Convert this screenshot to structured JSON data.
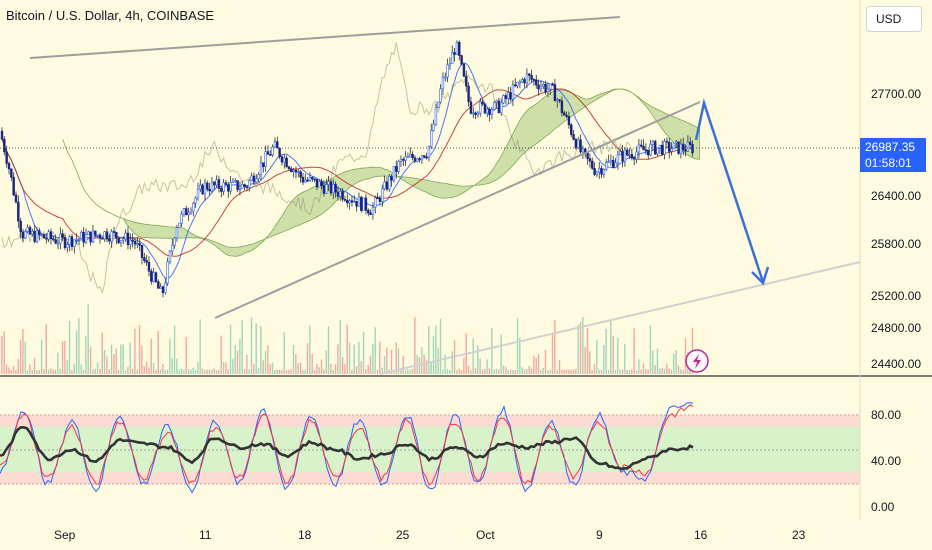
{
  "header": {
    "title": "Bitcoin / U.S. Dollar, 4h, COINBASE",
    "currency_button": "USD"
  },
  "price_label": {
    "price": "26987.35",
    "countdown": "01:58:01"
  },
  "colors": {
    "background": "#fffbe0",
    "candle_up": "#2962ff",
    "candle_down": "#b71c1c",
    "price_tag": "#2962ff",
    "arrow": "#3a6fd8",
    "trendline": "#9e9e9e",
    "cloud": "#a5c87a",
    "stoch_k": "#2962ff",
    "stoch_d": "#f23645",
    "rsi": "#333333"
  },
  "icons": {
    "lightning": "lightning-icon"
  },
  "chart_data": [
    {
      "type": "candlestick",
      "title": "Bitcoin / U.S. Dollar, 4h, COINBASE",
      "y_ticks": [
        24400,
        24800,
        25200,
        25800,
        26400,
        27700
      ],
      "y_tick_labels": [
        "24400.00",
        "24800.00",
        "25200.00",
        "25800.00",
        "26400.00",
        "27700.00"
      ],
      "x_ticks": [
        "Sep",
        "11",
        "18",
        "25",
        "Oct",
        "9",
        "16",
        "23"
      ],
      "last_price": 26987.35,
      "indicators": [
        "ichimoku cloud",
        "volume"
      ],
      "approx_price_path": [
        {
          "date": "2023-08-29",
          "close": 26100
        },
        {
          "date": "2023-08-30",
          "close": 27500
        },
        {
          "date": "2023-08-31",
          "close": 26800
        },
        {
          "date": "2023-09-01",
          "close": 25900
        },
        {
          "date": "2023-09-04",
          "close": 25800
        },
        {
          "date": "2023-09-07",
          "close": 25900
        },
        {
          "date": "2023-09-09",
          "close": 25800
        },
        {
          "date": "2023-09-11",
          "close": 25100
        },
        {
          "date": "2023-09-12",
          "close": 26000
        },
        {
          "date": "2023-09-14",
          "close": 26500
        },
        {
          "date": "2023-09-17",
          "close": 26500
        },
        {
          "date": "2023-09-19",
          "close": 27000
        },
        {
          "date": "2023-09-21",
          "close": 26600
        },
        {
          "date": "2023-09-24",
          "close": 26400
        },
        {
          "date": "2023-09-26",
          "close": 26200
        },
        {
          "date": "2023-09-28",
          "close": 26800
        },
        {
          "date": "2023-09-30",
          "close": 26950
        },
        {
          "date": "2023-10-01",
          "close": 27800
        },
        {
          "date": "2023-10-02",
          "close": 28300
        },
        {
          "date": "2023-10-03",
          "close": 27500
        },
        {
          "date": "2023-10-05",
          "close": 27500
        },
        {
          "date": "2023-10-07",
          "close": 27900
        },
        {
          "date": "2023-10-09",
          "close": 27700
        },
        {
          "date": "2023-10-11",
          "close": 26900
        },
        {
          "date": "2023-10-12",
          "close": 26700
        },
        {
          "date": "2023-10-14",
          "close": 26900
        },
        {
          "date": "2023-10-16",
          "close": 26987
        }
      ],
      "projection": {
        "from": {
          "date": "2023-10-16",
          "price": 27700
        },
        "to": {
          "date": "2023-10-20",
          "price": 25300
        }
      }
    },
    {
      "type": "line",
      "name": "oscillator",
      "y_ticks": [
        0,
        40,
        80
      ],
      "y_tick_labels": [
        "0.00",
        "40.00",
        "80.00"
      ],
      "bands": [
        [
          20,
          30
        ],
        [
          30,
          50
        ],
        [
          70,
          80
        ]
      ],
      "series": [
        {
          "name": "",
          "color": "#2962ff",
          "values": [
            30,
            85,
            20,
            75,
            15,
            80,
            20,
            70,
            15,
            75,
            20,
            85,
            15,
            80,
            20,
            75,
            20,
            80,
            15,
            80,
            20,
            85,
            15,
            75,
            20,
            80,
            30,
            25,
            85,
            90
          ]
        },
        {
          "name": "",
          "color": "#f23645",
          "values": [
            35,
            80,
            25,
            70,
            20,
            75,
            25,
            65,
            20,
            70,
            25,
            80,
            20,
            75,
            25,
            70,
            25,
            75,
            20,
            75,
            25,
            80,
            20,
            70,
            25,
            75,
            35,
            30,
            80,
            88
          ]
        },
        {
          "name": "",
          "color": "#333333",
          "values": [
            45,
            70,
            42,
            50,
            40,
            58,
            55,
            52,
            40,
            60,
            52,
            55,
            45,
            56,
            50,
            42,
            46,
            55,
            42,
            52,
            44,
            55,
            52,
            56,
            60,
            38,
            33,
            42,
            50,
            52
          ]
        }
      ]
    }
  ]
}
